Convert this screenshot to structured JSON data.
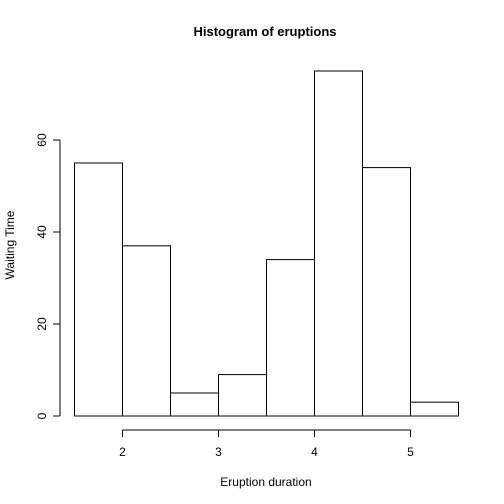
{
  "chart_data": {
    "type": "bar",
    "title": "Histogram of eruptions",
    "xlabel": "Eruption duration",
    "ylabel": "Waiting Time",
    "bins": [
      {
        "start": 1.5,
        "end": 2.0,
        "count": 55
      },
      {
        "start": 2.0,
        "end": 2.5,
        "count": 37
      },
      {
        "start": 2.5,
        "end": 3.0,
        "count": 5
      },
      {
        "start": 3.0,
        "end": 3.5,
        "count": 9
      },
      {
        "start": 3.5,
        "end": 4.0,
        "count": 34
      },
      {
        "start": 4.0,
        "end": 4.5,
        "count": 75
      },
      {
        "start": 4.5,
        "end": 5.0,
        "count": 54
      },
      {
        "start": 5.0,
        "end": 5.5,
        "count": 3
      }
    ],
    "xlim": [
      1.5,
      5.5
    ],
    "ylim": [
      0,
      75
    ],
    "x_ticks": [
      2,
      3,
      4,
      5
    ],
    "x_tick_labels": [
      "2",
      "3",
      "4",
      "5"
    ],
    "y_ticks": [
      0,
      20,
      40,
      60
    ],
    "y_tick_labels": [
      "0",
      "20",
      "40",
      "60"
    ],
    "grid": false,
    "legend": "none"
  }
}
